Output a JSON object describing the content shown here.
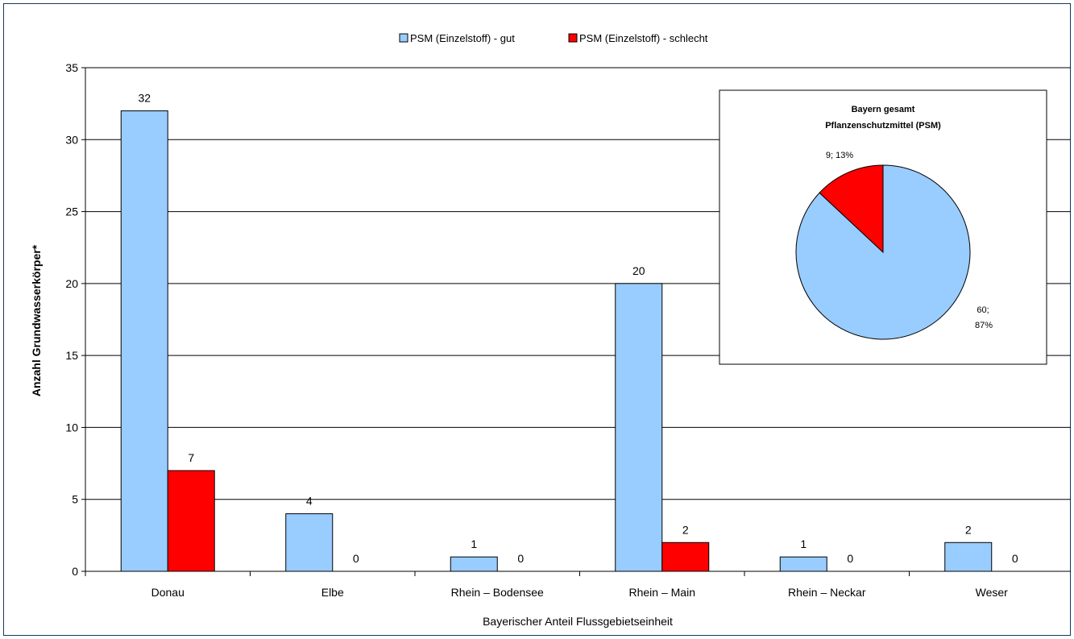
{
  "chart_data": [
    {
      "type": "bar",
      "categories": [
        "Donau",
        "Elbe",
        "Rhein – Bodensee",
        "Rhein – Main",
        "Rhein – Neckar",
        "Weser"
      ],
      "series": [
        {
          "name": "PSM (Einzelstoff) - gut",
          "values": [
            32,
            4,
            1,
            20,
            1,
            2
          ],
          "color": "#99CCFF"
        },
        {
          "name": "PSM (Einzelstoff) - schlecht",
          "values": [
            7,
            0,
            0,
            2,
            0,
            0
          ],
          "color": "#FF0000"
        }
      ],
      "xlabel": "Bayerischer Anteil Flussgebietseinheit",
      "ylabel": "Anzahl Grundwasserkörper*",
      "ylim": [
        0,
        35
      ],
      "yticks": [
        0,
        5,
        10,
        15,
        20,
        25,
        30,
        35
      ],
      "grid": true,
      "legend": "top-center"
    },
    {
      "type": "pie",
      "title": "Bayern gesamt",
      "subtitle": "Pflanzenschutzmittel (PSM)",
      "slices": [
        {
          "value": 60,
          "percent": 87,
          "label": "60;",
          "label2": "87%",
          "color": "#99CCFF"
        },
        {
          "value": 9,
          "percent": 13,
          "label": "9; 13%",
          "color": "#FF0000"
        }
      ]
    }
  ]
}
